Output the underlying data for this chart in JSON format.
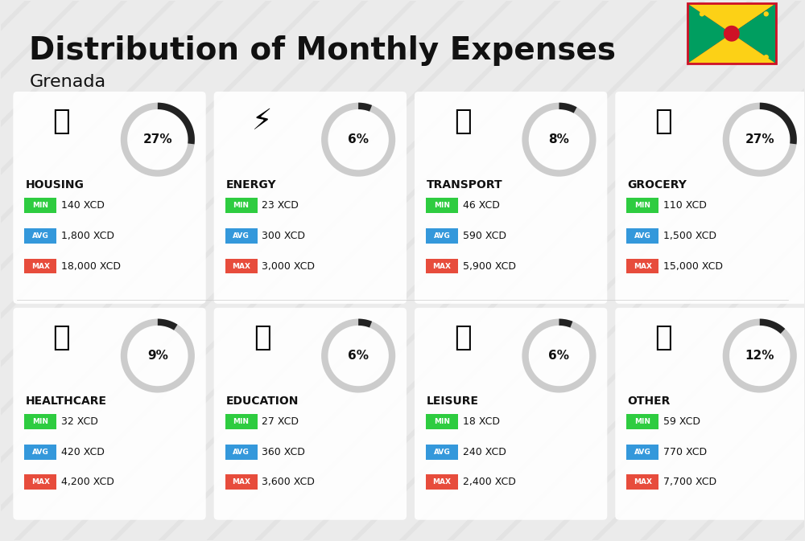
{
  "title": "Distribution of Monthly Expenses",
  "subtitle": "Grenada",
  "bg_color": "#f0f0f0",
  "card_bg": "#ffffff",
  "categories": [
    {
      "name": "HOUSING",
      "pct": 27,
      "min_val": "140 XCD",
      "avg_val": "1,800 XCD",
      "max_val": "18,000 XCD",
      "emoji": "🏗",
      "row": 0,
      "col": 0
    },
    {
      "name": "ENERGY",
      "pct": 6,
      "min_val": "23 XCD",
      "avg_val": "300 XCD",
      "max_val": "3,000 XCD",
      "emoji": "⚡",
      "row": 0,
      "col": 1
    },
    {
      "name": "TRANSPORT",
      "pct": 8,
      "min_val": "46 XCD",
      "avg_val": "590 XCD",
      "max_val": "5,900 XCD",
      "emoji": "🚌",
      "row": 0,
      "col": 2
    },
    {
      "name": "GROCERY",
      "pct": 27,
      "min_val": "110 XCD",
      "avg_val": "1,500 XCD",
      "max_val": "15,000 XCD",
      "emoji": "🛒",
      "row": 0,
      "col": 3
    },
    {
      "name": "HEALTHCARE",
      "pct": 9,
      "min_val": "32 XCD",
      "avg_val": "420 XCD",
      "max_val": "4,200 XCD",
      "emoji": "💚",
      "row": 1,
      "col": 0
    },
    {
      "name": "EDUCATION",
      "pct": 6,
      "min_val": "27 XCD",
      "avg_val": "360 XCD",
      "max_val": "3,600 XCD",
      "emoji": "🎓",
      "row": 1,
      "col": 1
    },
    {
      "name": "LEISURE",
      "pct": 6,
      "min_val": "18 XCD",
      "avg_val": "240 XCD",
      "max_val": "2,400 XCD",
      "emoji": "🛍",
      "row": 1,
      "col": 2
    },
    {
      "name": "OTHER",
      "pct": 12,
      "min_val": "59 XCD",
      "avg_val": "770 XCD",
      "max_val": "7,700 XCD",
      "emoji": "👜",
      "row": 1,
      "col": 3
    }
  ],
  "min_color": "#2ecc40",
  "avg_color": "#3498db",
  "max_color": "#e74c3c",
  "label_color": "#ffffff",
  "ring_bg_color": "#d0d0d0",
  "ring_fg_color": "#222222",
  "text_color": "#111111",
  "title_fontsize": 28,
  "subtitle_fontsize": 16,
  "cat_fontsize": 11,
  "val_fontsize": 10
}
